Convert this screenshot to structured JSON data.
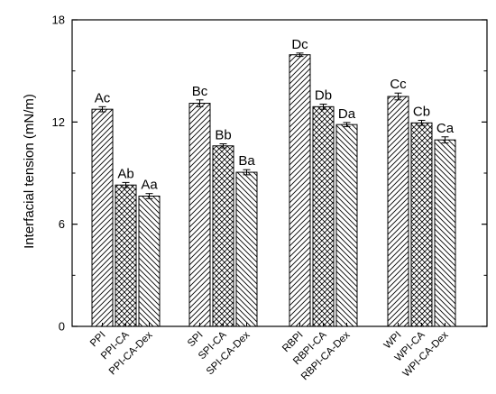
{
  "chart_data": {
    "type": "bar",
    "ylabel": "Interfacial tension (mN/m)",
    "xlabel": "",
    "ylim": [
      0,
      18
    ],
    "yticks": [
      "0",
      "6",
      "12",
      "18"
    ],
    "grid": false,
    "groups": [
      {
        "bars": [
          {
            "category": "PPI",
            "value": 12.75,
            "error": 0.15,
            "label": "Ac",
            "pattern": "diagonal"
          },
          {
            "category": "PPI-CA",
            "value": 8.3,
            "error": 0.15,
            "label": "Ab",
            "pattern": "crosshatch"
          },
          {
            "category": "PPI-CA-Dex",
            "value": 7.65,
            "error": 0.15,
            "label": "Aa",
            "pattern": "reverse-diagonal"
          }
        ]
      },
      {
        "bars": [
          {
            "category": "SPI",
            "value": 13.1,
            "error": 0.2,
            "label": "Bc",
            "pattern": "diagonal"
          },
          {
            "category": "SPI-CA",
            "value": 10.6,
            "error": 0.12,
            "label": "Bb",
            "pattern": "crosshatch"
          },
          {
            "category": "SPI-CA-Dex",
            "value": 9.05,
            "error": 0.15,
            "label": "Ba",
            "pattern": "reverse-diagonal"
          }
        ]
      },
      {
        "bars": [
          {
            "category": "RBPI",
            "value": 15.95,
            "error": 0.1,
            "label": "Dc",
            "pattern": "diagonal"
          },
          {
            "category": "RBPI-CA",
            "value": 12.9,
            "error": 0.15,
            "label": "Db",
            "pattern": "crosshatch"
          },
          {
            "category": "RBPI-CA-Dex",
            "value": 11.85,
            "error": 0.12,
            "label": "Da",
            "pattern": "reverse-diagonal"
          }
        ]
      },
      {
        "bars": [
          {
            "category": "WPI",
            "value": 13.5,
            "error": 0.2,
            "label": "Cc",
            "pattern": "diagonal"
          },
          {
            "category": "WPI-CA",
            "value": 11.95,
            "error": 0.15,
            "label": "Cb",
            "pattern": "crosshatch"
          },
          {
            "category": "WPI-CA-Dex",
            "value": 10.95,
            "error": 0.18,
            "label": "Ca",
            "pattern": "reverse-diagonal"
          }
        ]
      }
    ]
  }
}
